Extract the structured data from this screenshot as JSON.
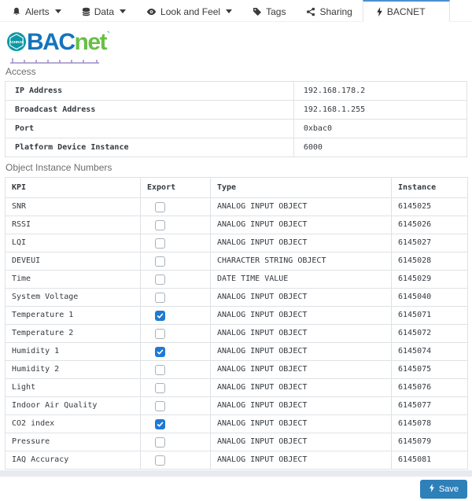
{
  "tabs": [
    {
      "label": "Alerts",
      "icon": "bell-icon",
      "has_caret": true,
      "active": false
    },
    {
      "label": "Data",
      "icon": "database-icon",
      "has_caret": true,
      "active": false
    },
    {
      "label": "Look and Feel",
      "icon": "eye-icon",
      "has_caret": true,
      "active": false
    },
    {
      "label": "Tags",
      "icon": "tag-icon",
      "has_caret": false,
      "active": false
    },
    {
      "label": "Sharing",
      "icon": "share-icon",
      "has_caret": false,
      "active": false
    },
    {
      "label": "BACNET",
      "icon": "bolt-icon",
      "has_caret": false,
      "active": true
    }
  ],
  "logo": {
    "badge_text": "ASHRAE",
    "brand_primary": "BAC",
    "brand_secondary": "net",
    "tm_mark": "`"
  },
  "access": {
    "section_title": "Access",
    "rows": [
      {
        "label": "IP Address",
        "value": "192.168.178.2"
      },
      {
        "label": "Broadcast Address",
        "value": "192.168.1.255"
      },
      {
        "label": "Port",
        "value": "0xbac0"
      },
      {
        "label": "Platform Device Instance",
        "value": "6000"
      }
    ]
  },
  "objects": {
    "section_title": "Object Instance Numbers",
    "columns": [
      "KPI",
      "Export",
      "Type",
      "Instance"
    ],
    "rows": [
      {
        "kpi": "SNR",
        "export": false,
        "type": "ANALOG INPUT OBJECT",
        "instance": "6145025"
      },
      {
        "kpi": "RSSI",
        "export": false,
        "type": "ANALOG INPUT OBJECT",
        "instance": "6145026"
      },
      {
        "kpi": "LQI",
        "export": false,
        "type": "ANALOG INPUT OBJECT",
        "instance": "6145027"
      },
      {
        "kpi": "DEVEUI",
        "export": false,
        "type": "CHARACTER STRING OBJECT",
        "instance": "6145028"
      },
      {
        "kpi": "Time",
        "export": false,
        "type": "DATE TIME VALUE",
        "instance": "6145029"
      },
      {
        "kpi": "System Voltage",
        "export": false,
        "type": "ANALOG INPUT OBJECT",
        "instance": "6145040"
      },
      {
        "kpi": "Temperature 1",
        "export": true,
        "type": "ANALOG INPUT OBJECT",
        "instance": "6145071"
      },
      {
        "kpi": "Temperature 2",
        "export": false,
        "type": "ANALOG INPUT OBJECT",
        "instance": "6145072"
      },
      {
        "kpi": "Humidity 1",
        "export": true,
        "type": "ANALOG INPUT OBJECT",
        "instance": "6145074"
      },
      {
        "kpi": "Humidity 2",
        "export": false,
        "type": "ANALOG INPUT OBJECT",
        "instance": "6145075"
      },
      {
        "kpi": "Light",
        "export": false,
        "type": "ANALOG INPUT OBJECT",
        "instance": "6145076"
      },
      {
        "kpi": "Indoor Air Quality",
        "export": false,
        "type": "ANALOG INPUT OBJECT",
        "instance": "6145077"
      },
      {
        "kpi": "CO2 index",
        "export": true,
        "type": "ANALOG INPUT OBJECT",
        "instance": "6145078"
      },
      {
        "kpi": "Pressure",
        "export": false,
        "type": "ANALOG INPUT OBJECT",
        "instance": "6145079"
      },
      {
        "kpi": "IAQ Accuracy",
        "export": false,
        "type": "ANALOG INPUT OBJECT",
        "instance": "6145081"
      }
    ]
  },
  "footer": {
    "save_label": "Save"
  },
  "colors": {
    "tab_accent": "#4a90d2",
    "brand_blue": "#1474bc",
    "brand_green": "#68bf44",
    "badge_teal": "#0d98a6",
    "bus_purple": "#9b8ec4",
    "checkbox_checked": "#1e7ad4",
    "save_button": "#2e80b9",
    "table_border": "#dee2e6",
    "footer_bar": "#e7ebf0"
  }
}
